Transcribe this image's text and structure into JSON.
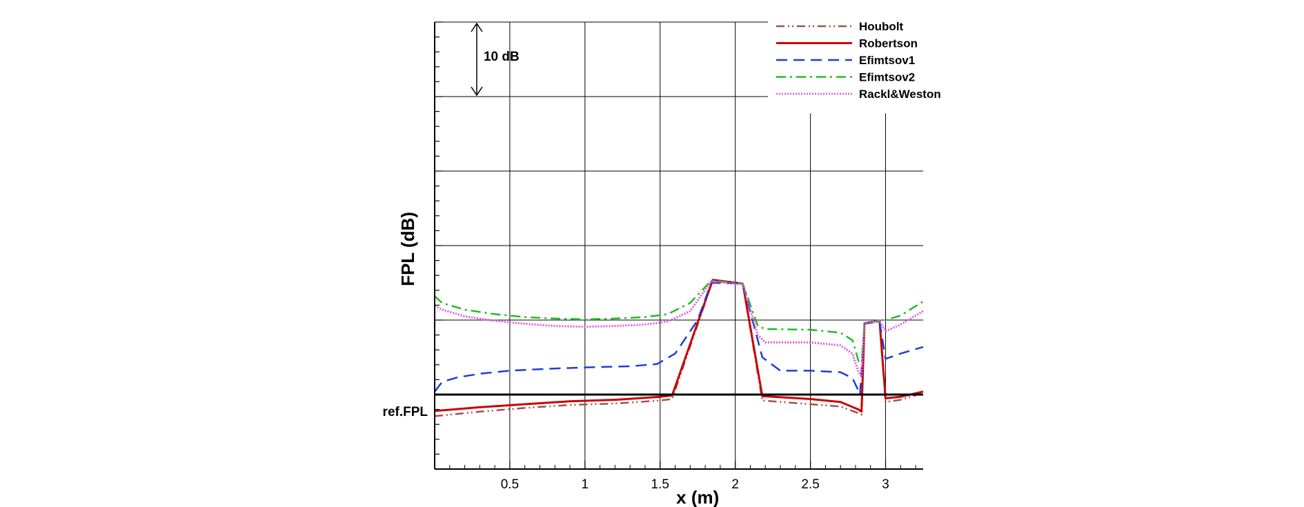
{
  "chart_data": {
    "type": "line",
    "title": "",
    "xlabel": "x (m)",
    "ylabel": "FPL (dB)",
    "xlim": [
      0.0,
      3.25
    ],
    "ylim": [
      -10,
      50
    ],
    "x_ticks": [
      0.5,
      1,
      1.5,
      2,
      2.5,
      3
    ],
    "x_tick_labels": [
      "0.5",
      "1",
      "1.5",
      "2",
      "2.5",
      "3"
    ],
    "y_ticks": [
      0,
      10,
      20,
      30,
      40,
      50
    ],
    "grid": true,
    "legend_position": "top-right",
    "reference_line": {
      "y": 0,
      "label": "ref.FPL"
    },
    "scale_annotation": {
      "label": "10 dB",
      "y_from": 40,
      "y_to": 50,
      "x": 0.28
    },
    "series": [
      {
        "name": "Houbolt",
        "color": "#a0504a",
        "dash": "dashdotdot",
        "points": [
          [
            0,
            -2.9
          ],
          [
            0.3,
            -2.3
          ],
          [
            0.6,
            -1.8
          ],
          [
            0.9,
            -1.4
          ],
          [
            1.2,
            -1.2
          ],
          [
            1.5,
            -0.8
          ],
          [
            1.58,
            -0.6
          ],
          [
            1.85,
            15.3
          ],
          [
            2.05,
            14.8
          ],
          [
            2.18,
            -0.8
          ],
          [
            2.5,
            -1.3
          ],
          [
            2.7,
            -1.6
          ],
          [
            2.82,
            -2.5
          ],
          [
            2.84,
            -2.7
          ],
          [
            2.86,
            9.5
          ],
          [
            2.96,
            9.8
          ],
          [
            3.0,
            -1.0
          ],
          [
            3.1,
            -0.7
          ],
          [
            3.25,
            0.2
          ]
        ]
      },
      {
        "name": "Robertson",
        "color": "#cc0000",
        "dash": "solid",
        "points": [
          [
            0,
            -2.2
          ],
          [
            0.3,
            -1.7
          ],
          [
            0.6,
            -1.3
          ],
          [
            0.9,
            -0.9
          ],
          [
            1.2,
            -0.7
          ],
          [
            1.5,
            -0.3
          ],
          [
            1.58,
            -0.1
          ],
          [
            1.85,
            15.4
          ],
          [
            2.05,
            14.9
          ],
          [
            2.18,
            -0.2
          ],
          [
            2.5,
            -0.6
          ],
          [
            2.7,
            -1.0
          ],
          [
            2.82,
            -2.0
          ],
          [
            2.84,
            -2.3
          ],
          [
            2.86,
            9.6
          ],
          [
            2.96,
            9.9
          ],
          [
            3.0,
            -0.5
          ],
          [
            3.1,
            -0.3
          ],
          [
            3.25,
            0.4
          ]
        ]
      },
      {
        "name": "Efimtsov1",
        "color": "#1e3cd6",
        "dash": "dashed",
        "points": [
          [
            0,
            0.4
          ],
          [
            0.05,
            1.7
          ],
          [
            0.15,
            2.3
          ],
          [
            0.3,
            2.8
          ],
          [
            0.5,
            3.2
          ],
          [
            0.8,
            3.5
          ],
          [
            1.1,
            3.7
          ],
          [
            1.3,
            3.8
          ],
          [
            1.48,
            4.1
          ],
          [
            1.6,
            5.5
          ],
          [
            1.75,
            10.0
          ],
          [
            1.84,
            15.0
          ],
          [
            2.05,
            14.9
          ],
          [
            2.18,
            5.0
          ],
          [
            2.3,
            3.2
          ],
          [
            2.5,
            3.2
          ],
          [
            2.7,
            3.0
          ],
          [
            2.78,
            2.2
          ],
          [
            2.82,
            0.5
          ],
          [
            2.83,
            0.0
          ],
          [
            2.86,
            9.6
          ],
          [
            2.96,
            9.8
          ],
          [
            3.0,
            4.8
          ],
          [
            3.1,
            5.5
          ],
          [
            3.25,
            6.4
          ]
        ]
      },
      {
        "name": "Efimtsov2",
        "color": "#22bb22",
        "dash": "dashdot",
        "points": [
          [
            0,
            13.2
          ],
          [
            0.05,
            12.3
          ],
          [
            0.2,
            11.4
          ],
          [
            0.4,
            10.8
          ],
          [
            0.6,
            10.4
          ],
          [
            0.8,
            10.2
          ],
          [
            1.0,
            10.1
          ],
          [
            1.2,
            10.2
          ],
          [
            1.4,
            10.4
          ],
          [
            1.55,
            10.8
          ],
          [
            1.7,
            12.3
          ],
          [
            1.84,
            15.3
          ],
          [
            2.05,
            14.9
          ],
          [
            2.15,
            9.2
          ],
          [
            2.2,
            8.8
          ],
          [
            2.5,
            8.7
          ],
          [
            2.7,
            8.3
          ],
          [
            2.78,
            7.3
          ],
          [
            2.82,
            4.5
          ],
          [
            2.84,
            4.2
          ],
          [
            2.86,
            9.6
          ],
          [
            2.96,
            9.9
          ],
          [
            3.0,
            10.0
          ],
          [
            3.1,
            10.6
          ],
          [
            3.25,
            12.5
          ]
        ]
      },
      {
        "name": "Rackl&Weston",
        "color": "#e055e0",
        "dash": "dotted",
        "points": [
          [
            0,
            11.9
          ],
          [
            0.05,
            11.4
          ],
          [
            0.2,
            10.5
          ],
          [
            0.4,
            9.9
          ],
          [
            0.6,
            9.5
          ],
          [
            0.8,
            9.2
          ],
          [
            1.0,
            9.1
          ],
          [
            1.2,
            9.2
          ],
          [
            1.4,
            9.4
          ],
          [
            1.55,
            9.8
          ],
          [
            1.7,
            11.2
          ],
          [
            1.84,
            15.2
          ],
          [
            2.05,
            14.8
          ],
          [
            2.15,
            8.0
          ],
          [
            2.2,
            7.0
          ],
          [
            2.5,
            7.0
          ],
          [
            2.7,
            6.6
          ],
          [
            2.78,
            5.5
          ],
          [
            2.82,
            3.0
          ],
          [
            2.84,
            2.4
          ],
          [
            2.86,
            9.6
          ],
          [
            2.96,
            9.9
          ],
          [
            3.0,
            8.5
          ],
          [
            3.1,
            9.4
          ],
          [
            3.25,
            11.2
          ]
        ]
      }
    ]
  }
}
